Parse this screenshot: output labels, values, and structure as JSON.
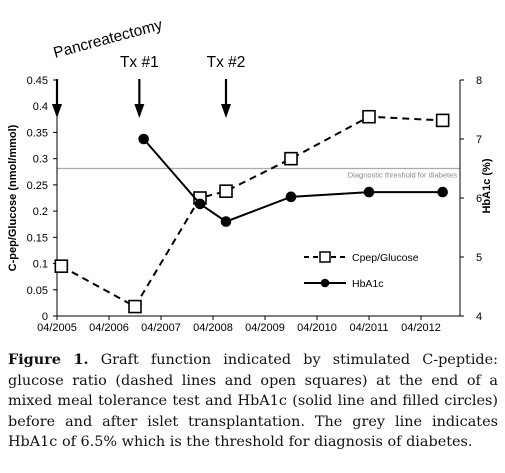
{
  "chart_data": {
    "type": "line",
    "x_ticks": [
      "04/2005",
      "04/2006",
      "04/2007",
      "04/2008",
      "04/2009",
      "04/2010",
      "04/2011",
      "04/2012"
    ],
    "xlim": [
      "2005-04",
      "2013-01"
    ],
    "y_left": {
      "label": "C-pep/Glucose (nmol/mmol)",
      "ticks": [
        "0",
        "0.05",
        "0.1",
        "0.15",
        "0.2",
        "0.25",
        "0.3",
        "0.35",
        "0.4",
        "0.45"
      ],
      "ylim": [
        0,
        0.45
      ]
    },
    "y_right": {
      "label": "HbA1c (%)",
      "ticks": [
        "4",
        "5",
        "6",
        "7",
        "8"
      ],
      "ylim": [
        4,
        8
      ]
    },
    "series": [
      {
        "name": "Cpep/Glucose",
        "axis": "left",
        "style": "dashed line, open squares",
        "color": "#000000",
        "points": [
          {
            "x": "2005-05",
            "y": 0.095
          },
          {
            "x": "2006-10",
            "y": 0.018
          },
          {
            "x": "2008-01",
            "y": 0.225
          },
          {
            "x": "2008-07",
            "y": 0.238
          },
          {
            "x": "2009-10",
            "y": 0.3
          },
          {
            "x": "2011-04",
            "y": 0.38
          },
          {
            "x": "2012-09",
            "y": 0.373
          }
        ]
      },
      {
        "name": "HbA1c",
        "axis": "right",
        "style": "solid line, filled circles",
        "color": "#000000",
        "points": [
          {
            "x": "2006-12",
            "y": 7.0
          },
          {
            "x": "2008-01",
            "y": 5.9
          },
          {
            "x": "2008-07",
            "y": 5.6
          },
          {
            "x": "2009-10",
            "y": 6.02
          },
          {
            "x": "2011-04",
            "y": 6.1
          },
          {
            "x": "2012-09",
            "y": 6.1
          }
        ]
      }
    ],
    "threshold": {
      "label": "Diagnostic threshold for diabetes",
      "value": 6.5,
      "axis": "right",
      "color": "#aaaaaa"
    },
    "annotations": [
      {
        "text": "Pancreatectomy",
        "x": "2005-04",
        "style": "rotated"
      },
      {
        "text": "Tx #1",
        "x": "2006-11"
      },
      {
        "text": "Tx #2",
        "x": "2008-07"
      }
    ],
    "legend_placement": "lower-right",
    "grid": false
  },
  "caption": {
    "label": "Figure 1.",
    "text": "Graft function indicated by stimulated C-peptide: glucose ratio (dashed lines and open squares) at the end of a mixed meal tolerance test and HbA1c (solid line and filled circles) before and after islet transplantation. The grey line indicates HbA1c of 6.5% which is the threshold for diagnosis of diabetes."
  }
}
